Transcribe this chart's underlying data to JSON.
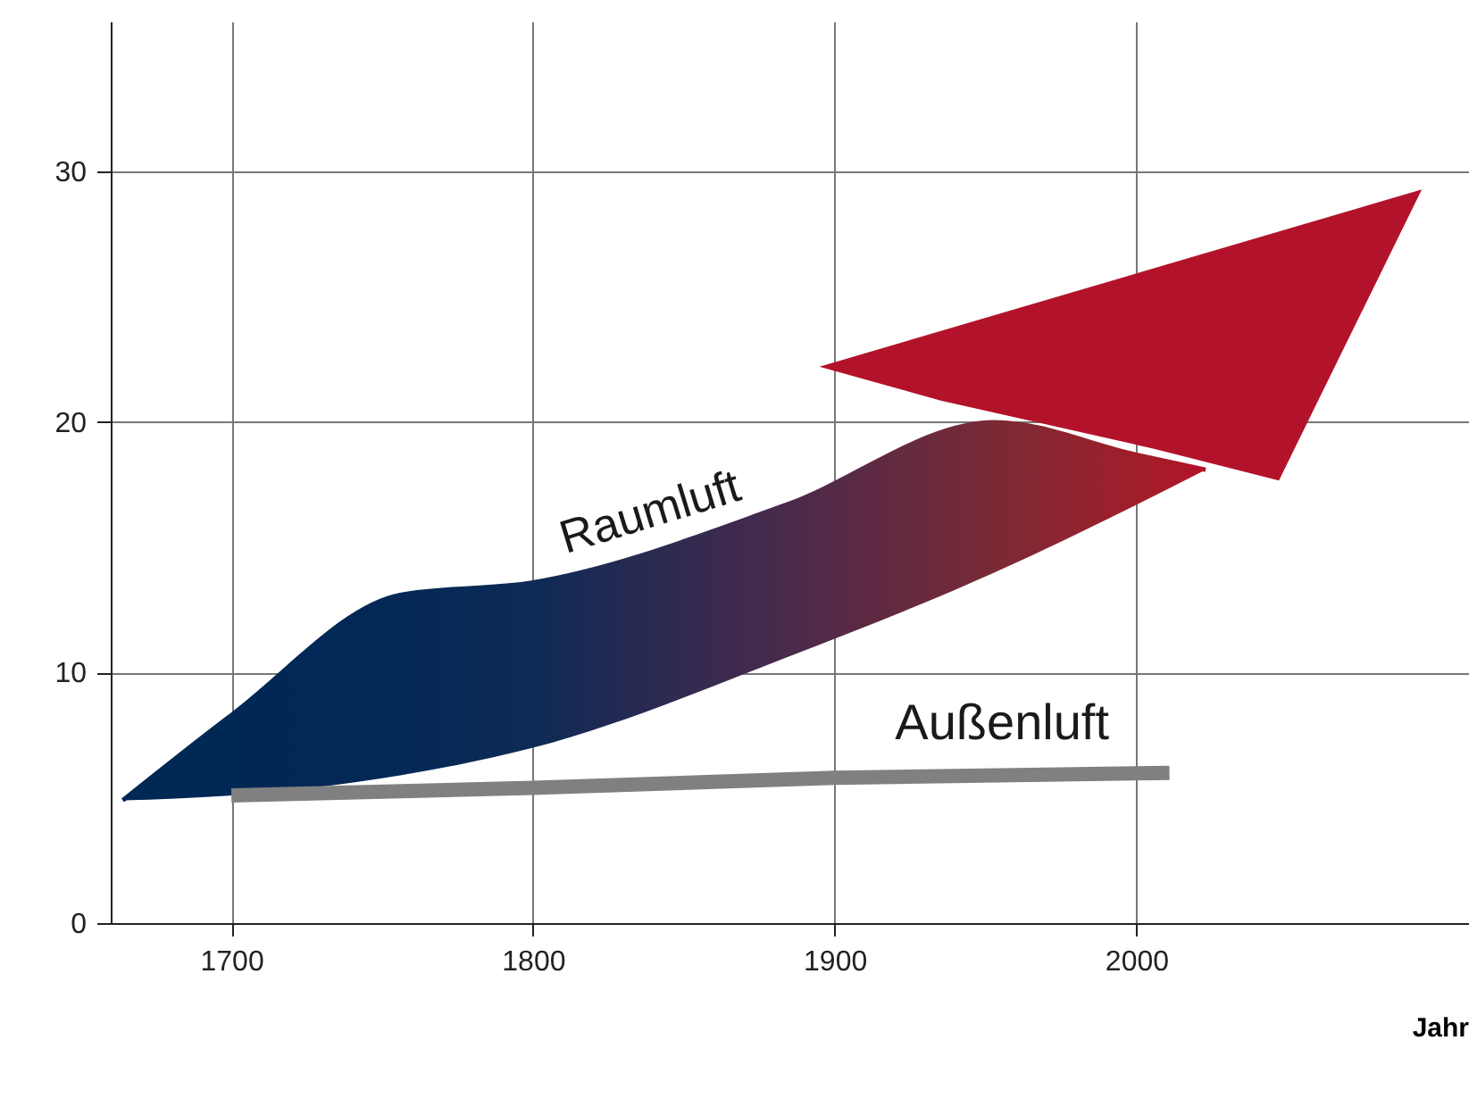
{
  "chart_data": {
    "type": "line",
    "xlabel": "Jahr",
    "xlim": [
      1660,
      2110
    ],
    "xticks": [
      1700,
      1800,
      1900,
      2000
    ],
    "ylim": [
      0,
      36
    ],
    "yticks": [
      0,
      10,
      20,
      30
    ],
    "grid": true,
    "series": [
      {
        "name": "Raumluft",
        "colors": [
          "#002855",
          "#002855",
          "#042856",
          "#0e2a56",
          "#4a2a4c",
          "#7a2a35",
          "#a01e2a",
          "#b3132a"
        ],
        "x": [
          1664,
          1700,
          1756,
          1800,
          1884,
          1953,
          2000,
          2023
        ],
        "values": [
          4.9,
          8.3,
          13.1,
          13.6,
          16.7,
          20.0,
          18.7,
          18.1
        ],
        "lower": [
          4.9,
          5.1,
          5.9,
          7.0,
          10.6,
          14.0,
          16.7,
          18.1
        ],
        "upper": [
          4.9,
          8.3,
          13.1,
          13.6,
          16.7,
          20.0,
          18.7,
          18.1
        ]
      },
      {
        "name": "Außenluft",
        "color": "#808080",
        "x": [
          1700,
          1800,
          1900,
          2011
        ],
        "values": [
          5.1,
          5.4,
          5.8,
          6.0
        ]
      }
    ]
  }
}
